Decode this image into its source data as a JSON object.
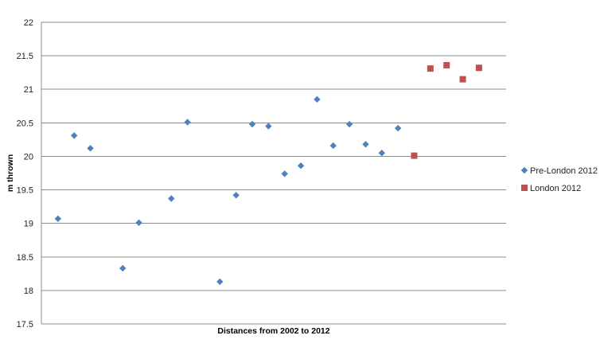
{
  "chart_data": {
    "type": "scatter",
    "title": "",
    "xlabel": "Distances from 2002 to 2012",
    "ylabel": "m thrown",
    "ylim": [
      17.5,
      22
    ],
    "yticks": [
      "17.5",
      "18",
      "18.5",
      "19",
      "19.5",
      "20",
      "20.5",
      "21",
      "21.5",
      "22"
    ],
    "xlim": [
      0,
      27
    ],
    "grid": "horizontal",
    "legend_position": "right",
    "series": [
      {
        "name": "Pre-London 2012",
        "marker": "diamond",
        "color": "#4F81BD",
        "points": [
          {
            "x": 1,
            "y": 19.07
          },
          {
            "x": 2,
            "y": 20.31
          },
          {
            "x": 3,
            "y": 20.12
          },
          {
            "x": 5,
            "y": 18.33
          },
          {
            "x": 6,
            "y": 19.01
          },
          {
            "x": 8,
            "y": 19.37
          },
          {
            "x": 9,
            "y": 20.51
          },
          {
            "x": 11,
            "y": 18.13
          },
          {
            "x": 12,
            "y": 19.42
          },
          {
            "x": 13,
            "y": 20.48
          },
          {
            "x": 14,
            "y": 20.45
          },
          {
            "x": 15,
            "y": 19.74
          },
          {
            "x": 16,
            "y": 19.86
          },
          {
            "x": 17,
            "y": 20.85
          },
          {
            "x": 18,
            "y": 20.16
          },
          {
            "x": 19,
            "y": 20.48
          },
          {
            "x": 20,
            "y": 20.18
          },
          {
            "x": 21,
            "y": 20.05
          },
          {
            "x": 22,
            "y": 20.42
          }
        ]
      },
      {
        "name": "London 2012",
        "marker": "square",
        "color": "#C0504D",
        "points": [
          {
            "x": 23,
            "y": 20.01
          },
          {
            "x": 24,
            "y": 21.31
          },
          {
            "x": 25,
            "y": 21.36
          },
          {
            "x": 26,
            "y": 21.15
          },
          {
            "x": 27,
            "y": 21.32
          }
        ]
      }
    ]
  }
}
